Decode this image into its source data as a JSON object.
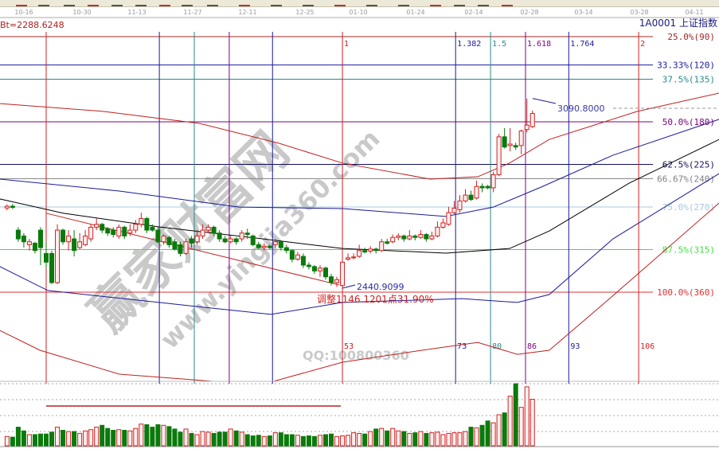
{
  "header": {
    "base_value": "Bt=2288.6248",
    "symbol": "1A0001  上证指数"
  },
  "watermark": {
    "site_name": "赢家财富网",
    "site_url": "www.yingjia360.com",
    "qq": "QQ:100800360"
  },
  "colors": {
    "up": "#d02020",
    "down": "#0a7a0a",
    "up_fill": "#fff0f0",
    "background": "#ffffff"
  },
  "chart_data": {
    "type": "candlestick",
    "title": "",
    "x_ticks": [
      "10-16",
      "10-30",
      "11-13",
      "11-27",
      "12-11",
      "12-25",
      "01-10",
      "01-24",
      "02-14",
      "02-28",
      "03-14",
      "03-28",
      "04-11"
    ],
    "candles_ohlc": [
      [
        2716,
        2728,
        2708,
        2722
      ],
      [
        2722,
        2730,
        2712,
        2718
      ],
      [
        2640,
        2650,
        2600,
        2610
      ],
      [
        2620,
        2630,
        2580,
        2600
      ],
      [
        2590,
        2610,
        2570,
        2600
      ],
      [
        2595,
        2600,
        2560,
        2570
      ],
      [
        2640,
        2650,
        2520,
        2580
      ],
      [
        2560,
        2600,
        2510,
        2530
      ],
      [
        2560,
        2570,
        2455,
        2460
      ],
      [
        2460,
        2660,
        2455,
        2640
      ],
      [
        2640,
        2645,
        2590,
        2600
      ],
      [
        2600,
        2640,
        2570,
        2620
      ],
      [
        2610,
        2640,
        2550,
        2570
      ],
      [
        2580,
        2630,
        2575,
        2600
      ],
      [
        2590,
        2640,
        2585,
        2620
      ],
      [
        2610,
        2660,
        2600,
        2650
      ],
      [
        2650,
        2680,
        2640,
        2660
      ],
      [
        2660,
        2665,
        2630,
        2640
      ],
      [
        2645,
        2650,
        2620,
        2630
      ],
      [
        2640,
        2650,
        2615,
        2625
      ],
      [
        2620,
        2660,
        2610,
        2650
      ],
      [
        2650,
        2655,
        2610,
        2620
      ],
      [
        2630,
        2660,
        2620,
        2640
      ],
      [
        2640,
        2675,
        2630,
        2660
      ],
      [
        2660,
        2700,
        2650,
        2680
      ],
      [
        2680,
        2685,
        2630,
        2640
      ],
      [
        2650,
        2660,
        2635,
        2640
      ],
      [
        2640,
        2650,
        2595,
        2600
      ],
      [
        2600,
        2625,
        2590,
        2620
      ],
      [
        2615,
        2620,
        2580,
        2590
      ],
      [
        2600,
        2610,
        2570,
        2575
      ],
      [
        2590,
        2600,
        2550,
        2560
      ],
      [
        2560,
        2610,
        2555,
        2600
      ],
      [
        2610,
        2620,
        2580,
        2595
      ],
      [
        2600,
        2640,
        2590,
        2620
      ],
      [
        2620,
        2660,
        2610,
        2640
      ],
      [
        2640,
        2660,
        2630,
        2650
      ],
      [
        2650,
        2655,
        2620,
        2630
      ],
      [
        2630,
        2640,
        2600,
        2610
      ],
      [
        2610,
        2620,
        2595,
        2600
      ],
      [
        2600,
        2620,
        2595,
        2610
      ],
      [
        2610,
        2615,
        2590,
        2600
      ],
      [
        2610,
        2640,
        2600,
        2630
      ],
      [
        2630,
        2645,
        2610,
        2625
      ],
      [
        2620,
        2625,
        2585,
        2590
      ],
      [
        2590,
        2600,
        2575,
        2580
      ],
      [
        2580,
        2595,
        2570,
        2585
      ],
      [
        2585,
        2590,
        2575,
        2580
      ],
      [
        2590,
        2610,
        2580,
        2600
      ],
      [
        2600,
        2605,
        2570,
        2580
      ],
      [
        2580,
        2590,
        2560,
        2570
      ],
      [
        2570,
        2575,
        2530,
        2540
      ],
      [
        2540,
        2565,
        2535,
        2555
      ],
      [
        2550,
        2560,
        2510,
        2520
      ],
      [
        2520,
        2530,
        2505,
        2515
      ],
      [
        2515,
        2520,
        2490,
        2500
      ],
      [
        2500,
        2520,
        2480,
        2510
      ],
      [
        2510,
        2515,
        2470,
        2480
      ],
      [
        2480,
        2490,
        2450,
        2460
      ],
      [
        2460,
        2480,
        2445,
        2470
      ],
      [
        2450,
        2535,
        2441,
        2530
      ],
      [
        2540,
        2560,
        2535,
        2545
      ],
      [
        2545,
        2560,
        2540,
        2548
      ],
      [
        2550,
        2590,
        2545,
        2570
      ],
      [
        2570,
        2580,
        2560,
        2565
      ],
      [
        2568,
        2585,
        2560,
        2575
      ],
      [
        2575,
        2580,
        2560,
        2570
      ],
      [
        2570,
        2610,
        2565,
        2600
      ],
      [
        2600,
        2610,
        2590,
        2595
      ],
      [
        2600,
        2625,
        2595,
        2615
      ],
      [
        2615,
        2630,
        2605,
        2620
      ],
      [
        2620,
        2625,
        2600,
        2610
      ],
      [
        2610,
        2640,
        2605,
        2620
      ],
      [
        2620,
        2625,
        2605,
        2615
      ],
      [
        2615,
        2640,
        2610,
        2625
      ],
      [
        2625,
        2630,
        2600,
        2610
      ],
      [
        2610,
        2635,
        2605,
        2620
      ],
      [
        2620,
        2670,
        2615,
        2650
      ],
      [
        2650,
        2680,
        2645,
        2665
      ],
      [
        2660,
        2720,
        2655,
        2700
      ],
      [
        2700,
        2740,
        2695,
        2715
      ],
      [
        2710,
        2760,
        2700,
        2740
      ],
      [
        2740,
        2780,
        2735,
        2760
      ],
      [
        2760,
        2775,
        2740,
        2745
      ],
      [
        2750,
        2810,
        2745,
        2790
      ],
      [
        2790,
        2800,
        2770,
        2785
      ],
      [
        2790,
        2795,
        2780,
        2785
      ],
      [
        2785,
        2840,
        2770,
        2830
      ],
      [
        2830,
        2970,
        2825,
        2960
      ],
      [
        2960,
        2990,
        2920,
        2925
      ],
      [
        2930,
        2990,
        2910,
        2935
      ],
      [
        2930,
        2940,
        2915,
        2925
      ],
      [
        2930,
        2985,
        2900,
        2980
      ],
      [
        2985,
        3091,
        2975,
        3000
      ],
      [
        2995,
        3050,
        2990,
        3040
      ]
    ],
    "volume_relative": [
      15,
      14,
      30,
      24,
      18,
      18,
      19,
      19,
      22,
      30,
      25,
      23,
      23,
      20,
      24,
      26,
      30,
      33,
      28,
      25,
      26,
      25,
      24,
      28,
      35,
      34,
      30,
      34,
      33,
      31,
      27,
      22,
      27,
      20,
      18,
      23,
      22,
      20,
      22,
      22,
      27,
      24,
      22,
      18,
      16,
      17,
      15,
      16,
      21,
      21,
      18,
      18,
      17,
      15,
      16,
      15,
      17,
      18,
      19,
      15,
      16,
      17,
      21,
      20,
      19,
      23,
      27,
      28,
      24,
      28,
      24,
      23,
      20,
      21,
      23,
      20,
      21,
      22,
      18,
      20,
      21,
      21,
      23,
      30,
      29,
      33,
      40,
      37,
      50,
      53,
      80,
      100,
      62,
      95,
      75
    ],
    "bands": [
      {
        "color": "#c02020",
        "points": [
          [
            -8.3,
            3074
          ],
          [
            10.3,
            3047
          ],
          [
            27.4,
            3006
          ],
          [
            41.6,
            2938
          ],
          [
            53,
            2870
          ],
          [
            68.7,
            2815
          ],
          [
            77.2,
            2823
          ],
          [
            82.9,
            2870
          ],
          [
            90,
            2951
          ],
          [
            105.7,
            3047
          ],
          [
            120.4,
            3110
          ]
        ]
      },
      {
        "color": "#1a1a9a",
        "points": [
          [
            -8.3,
            2815
          ],
          [
            13.1,
            2774
          ],
          [
            34.5,
            2719
          ],
          [
            53,
            2714
          ],
          [
            71.5,
            2687
          ],
          [
            80,
            2719
          ],
          [
            88.6,
            2788
          ],
          [
            101.4,
            2897
          ],
          [
            120.4,
            3020
          ]
        ]
      },
      {
        "color": "#000000",
        "points": [
          [
            -8.3,
            2747
          ],
          [
            3.1,
            2698
          ],
          [
            20.2,
            2651
          ],
          [
            38.7,
            2610
          ],
          [
            53,
            2577
          ],
          [
            71.5,
            2561
          ],
          [
            82.9,
            2577
          ],
          [
            90,
            2637
          ],
          [
            104.3,
            2801
          ],
          [
            120.4,
            2951
          ]
        ]
      },
      {
        "color": "#1a1a9a",
        "points": [
          [
            -8.3,
            2515
          ],
          [
            0.3,
            2433
          ],
          [
            20.2,
            2392
          ],
          [
            40.2,
            2351
          ],
          [
            53,
            2392
          ],
          [
            74.4,
            2405
          ],
          [
            84.3,
            2392
          ],
          [
            90,
            2419
          ],
          [
            101.4,
            2610
          ],
          [
            120.4,
            2834
          ]
        ]
      },
      {
        "color": "#c02020",
        "points": [
          [
            -8.3,
            2296
          ],
          [
            -1.1,
            2228
          ],
          [
            13.1,
            2146
          ],
          [
            31.6,
            2119
          ],
          [
            40.2,
            2119
          ],
          [
            53,
            2187
          ],
          [
            67.2,
            2228
          ],
          [
            77.2,
            2255
          ],
          [
            84.3,
            2214
          ],
          [
            90,
            2228
          ],
          [
            100,
            2392
          ],
          [
            120.4,
            2733
          ]
        ]
      }
    ],
    "trend_line": {
      "color": "#c02020",
      "points": [
        [
          0,
          2698
        ],
        [
          52.4,
          2452
        ]
      ]
    },
    "gann_levels": [
      {
        "pct": 25.0,
        "label": "25.0%(90)",
        "color": "#a02828"
      },
      {
        "pct": 33.33,
        "label": "33.33%(120)",
        "color": "#1a1aa0"
      },
      {
        "pct": 37.5,
        "label": "37.5%(135)",
        "color": "#2a8a8a"
      },
      {
        "pct": 50.0,
        "label": "50.0%(180)",
        "color": "#800080"
      },
      {
        "pct": 62.5,
        "label": "62.5%(225)",
        "color": "#10105a"
      },
      {
        "pct": 66.67,
        "label": "66.67%(240)",
        "color": "#808080"
      },
      {
        "pct": 75.0,
        "label": "75.0%(270)",
        "color": "#a8c8e0"
      },
      {
        "pct": 87.5,
        "label": "87.5%(315)",
        "color": "#40e040"
      },
      {
        "pct": 100.0,
        "label": "100.0%(360)",
        "color": "#e03030"
      }
    ],
    "fib_time_zones": [
      {
        "ratio": 0,
        "top_label": "",
        "bar_label": "",
        "color": "#d02020"
      },
      {
        "ratio": 0.382,
        "top_label": "",
        "bar_label": "",
        "color": "#1a1a9a"
      },
      {
        "ratio": 0.5,
        "top_label": "",
        "bar_label": "",
        "color": "#2a8a8a"
      },
      {
        "ratio": 0.618,
        "top_label": "",
        "bar_label": "",
        "color": "#800080"
      },
      {
        "ratio": 0.764,
        "top_label": "",
        "bar_label": "",
        "color": "#1a1a9a"
      },
      {
        "ratio": 1,
        "top_label": "1",
        "bar_label": "53",
        "color": "#d02020"
      },
      {
        "ratio": 1.382,
        "top_label": "1.382",
        "bar_label": "73",
        "color": "#1a1a9a"
      },
      {
        "ratio": 1.5,
        "top_label": "1.5",
        "bar_label": "80",
        "color": "#2a8a8a"
      },
      {
        "ratio": 1.618,
        "top_label": "1.618",
        "bar_label": "86",
        "color": "#800080"
      },
      {
        "ratio": 1.764,
        "top_label": "1.764",
        "bar_label": "93",
        "color": "#1a1a9a"
      },
      {
        "ratio": 2,
        "top_label": "2",
        "bar_label": "106",
        "color": "#d02020"
      }
    ],
    "annotations": {
      "low_value": "2440.9099",
      "high_value": "3090.8000",
      "correction": "调整1146.1201点31.90%"
    }
  }
}
